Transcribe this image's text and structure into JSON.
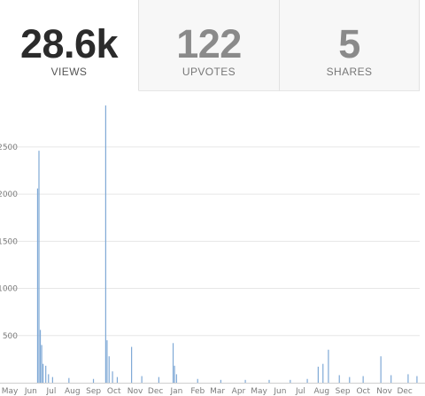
{
  "stats": [
    {
      "value": "28.6k",
      "label": "VIEWS",
      "active": true
    },
    {
      "value": "122",
      "label": "UPVOTES",
      "active": false
    },
    {
      "value": "5",
      "label": "SHARES",
      "active": false
    }
  ],
  "colors": {
    "bar": "#7fa9d6",
    "grid": "#e6e6e6",
    "axis": "#cfcfcf",
    "active_number": "#2b2b2b",
    "inactive_number": "#8a8a8a"
  },
  "chart_data": {
    "type": "bar",
    "title": "",
    "xlabel": "",
    "ylabel": "",
    "ylim": [
      0,
      2950
    ],
    "y_ticks": [
      {
        "value": 2500,
        "label": "2500"
      },
      {
        "value": 2000,
        "label": "2000"
      },
      {
        "value": 1500,
        "label": "1500"
      },
      {
        "value": 1000,
        "label": "1000"
      },
      {
        "value": 500,
        "label": "500"
      }
    ],
    "x_ticks": [
      "May",
      "Jun",
      "Jul",
      "Aug",
      "Sep",
      "Oct",
      "Nov",
      "Dec",
      "Jan",
      "Feb",
      "Mar",
      "Apr",
      "May",
      "Jun",
      "Jul",
      "Aug",
      "Sep",
      "Oct",
      "Nov",
      "Dec"
    ],
    "grid": true,
    "series": [
      {
        "values": [
          {
            "x": "2015-06-20",
            "y": 2060
          },
          {
            "x": "2015-06-22",
            "y": 2460
          },
          {
            "x": "2015-06-24",
            "y": 560
          },
          {
            "x": "2015-06-26",
            "y": 400
          },
          {
            "x": "2015-06-28",
            "y": 200
          },
          {
            "x": "2015-07-02",
            "y": 180
          },
          {
            "x": "2015-07-06",
            "y": 90
          },
          {
            "x": "2015-07-12",
            "y": 60
          },
          {
            "x": "2015-08-05",
            "y": 50
          },
          {
            "x": "2015-09-10",
            "y": 40
          },
          {
            "x": "2015-09-28",
            "y": 2940
          },
          {
            "x": "2015-09-30",
            "y": 450
          },
          {
            "x": "2015-10-03",
            "y": 280
          },
          {
            "x": "2015-10-08",
            "y": 120
          },
          {
            "x": "2015-10-15",
            "y": 60
          },
          {
            "x": "2015-11-05",
            "y": 380
          },
          {
            "x": "2015-11-20",
            "y": 70
          },
          {
            "x": "2015-12-15",
            "y": 60
          },
          {
            "x": "2016-01-05",
            "y": 420
          },
          {
            "x": "2016-01-07",
            "y": 180
          },
          {
            "x": "2016-01-10",
            "y": 90
          },
          {
            "x": "2016-02-10",
            "y": 40
          },
          {
            "x": "2016-03-15",
            "y": 30
          },
          {
            "x": "2016-04-20",
            "y": 30
          },
          {
            "x": "2016-05-25",
            "y": 30
          },
          {
            "x": "2016-06-25",
            "y": 30
          },
          {
            "x": "2016-07-20",
            "y": 40
          },
          {
            "x": "2016-08-05",
            "y": 170
          },
          {
            "x": "2016-08-12",
            "y": 200
          },
          {
            "x": "2016-08-20",
            "y": 350
          },
          {
            "x": "2016-09-05",
            "y": 80
          },
          {
            "x": "2016-09-20",
            "y": 60
          },
          {
            "x": "2016-10-10",
            "y": 70
          },
          {
            "x": "2016-11-05",
            "y": 280
          },
          {
            "x": "2016-11-20",
            "y": 80
          },
          {
            "x": "2016-12-15",
            "y": 90
          },
          {
            "x": "2016-12-28",
            "y": 70
          }
        ]
      }
    ]
  }
}
